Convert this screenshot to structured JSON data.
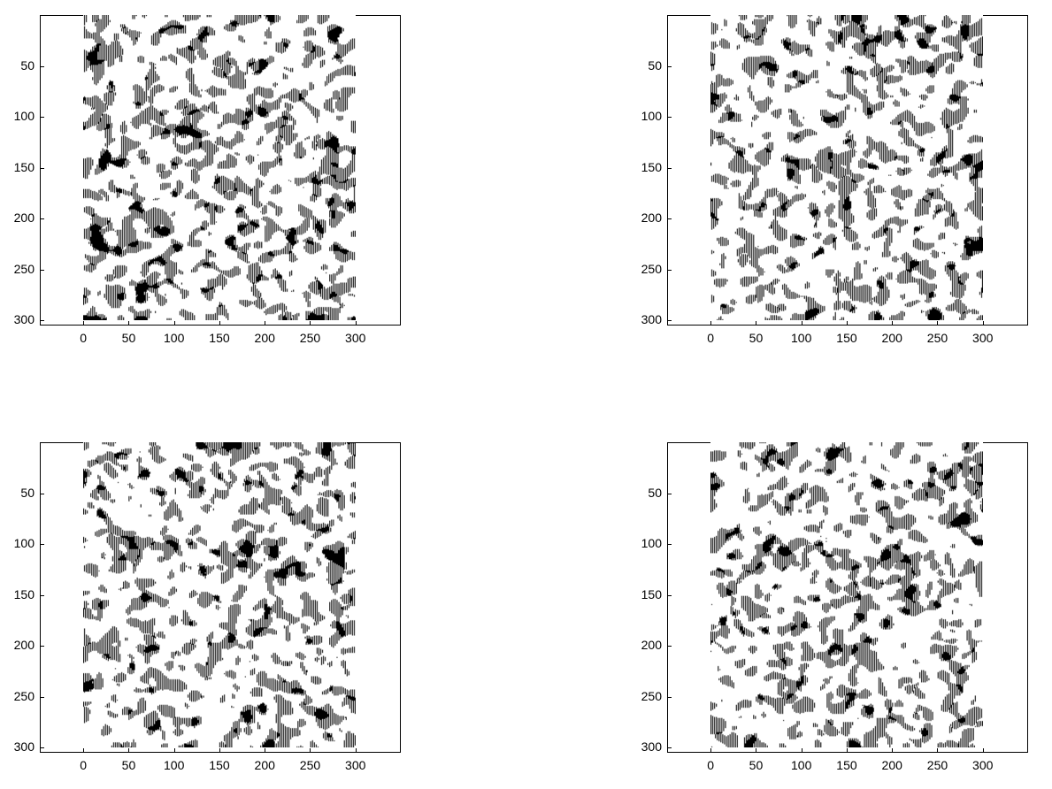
{
  "chart_data": [
    {
      "type": "heatmap",
      "colormap": [
        "#000000",
        "#ffffff"
      ],
      "image_size": [
        300,
        300
      ],
      "xlim": [
        -48,
        350
      ],
      "ylim": [
        0,
        305
      ],
      "y_reversed": true,
      "xticks": [
        "0",
        "50",
        "100",
        "150",
        "200",
        "250",
        "300"
      ],
      "yticks": [
        "50",
        "100",
        "150",
        "200",
        "250",
        "300"
      ],
      "seed": 11,
      "black_fraction": 0.22
    },
    {
      "type": "heatmap",
      "colormap": [
        "#000000",
        "#ffffff"
      ],
      "image_size": [
        300,
        300
      ],
      "xlim": [
        -48,
        350
      ],
      "ylim": [
        0,
        305
      ],
      "y_reversed": true,
      "xticks": [
        "0",
        "50",
        "100",
        "150",
        "200",
        "250",
        "300"
      ],
      "yticks": [
        "50",
        "100",
        "150",
        "200",
        "250",
        "300"
      ],
      "seed": 23,
      "black_fraction": 0.2
    },
    {
      "type": "heatmap",
      "colormap": [
        "#000000",
        "#ffffff"
      ],
      "image_size": [
        300,
        300
      ],
      "xlim": [
        -48,
        350
      ],
      "ylim": [
        0,
        305
      ],
      "y_reversed": true,
      "xticks": [
        "0",
        "50",
        "100",
        "150",
        "200",
        "250",
        "300"
      ],
      "yticks": [
        "50",
        "100",
        "150",
        "200",
        "250",
        "300"
      ],
      "seed": 37,
      "black_fraction": 0.2
    },
    {
      "type": "heatmap",
      "colormap": [
        "#000000",
        "#ffffff"
      ],
      "image_size": [
        300,
        300
      ],
      "xlim": [
        -48,
        350
      ],
      "ylim": [
        0,
        305
      ],
      "y_reversed": true,
      "xticks": [
        "0",
        "50",
        "100",
        "150",
        "200",
        "250",
        "300"
      ],
      "yticks": [
        "50",
        "100",
        "150",
        "200",
        "250",
        "300"
      ],
      "seed": 51,
      "black_fraction": 0.2
    }
  ]
}
